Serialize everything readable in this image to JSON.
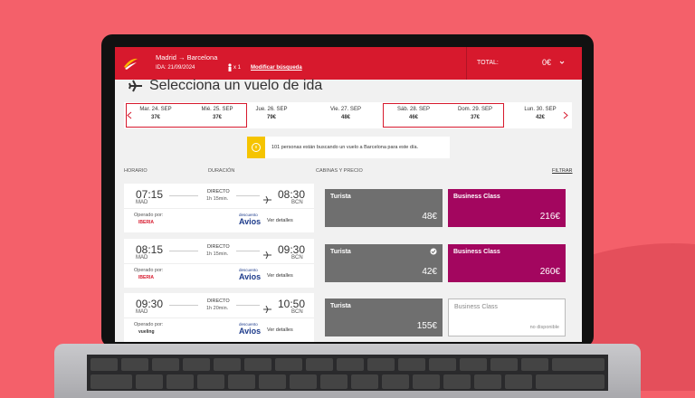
{
  "header": {
    "route": "Madrid → Barcelona",
    "date": "IDA: 21/09/2024",
    "passengers": "x 1",
    "modify": "Modificar búsqueda",
    "total_label": "TOTAL:",
    "total": "0€"
  },
  "title": "Selecciona un vuelo de ida",
  "dates": [
    {
      "day": "Mar. 24. SEP",
      "price": "37€"
    },
    {
      "day": "Mié. 25. SEP",
      "price": "37€"
    },
    {
      "day": "Jue. 26. SEP",
      "price": "79€"
    },
    {
      "day": "Vie. 27. SEP",
      "price": "48€"
    },
    {
      "day": "Sáb. 28. SEP",
      "price": "46€"
    },
    {
      "day": "Dom. 29. SEP",
      "price": "37€"
    },
    {
      "day": "Lun. 30. SEP",
      "price": "42€"
    }
  ],
  "notice": "101 personas están buscando un vuelo a Barcelona para este día.",
  "columns": {
    "schedule": "HORARIO",
    "duration": "DURACIÓN",
    "cabins": "CABINAS Y PRECIO",
    "filter": "FILTRAR"
  },
  "flights": [
    {
      "dep": "07:15",
      "dep_code": "MAD",
      "stops": "DIRECTO",
      "duration": "1h 15min.",
      "arr": "08:30",
      "arr_code": "BCN",
      "operated": "Operado por:",
      "airline": "IBERIA",
      "loyalty_top": "descuento",
      "loyalty": "Avios",
      "details": "Ver detalles",
      "cabins": [
        {
          "name": "Turista",
          "price": "48€"
        },
        {
          "name": "Business Class",
          "price": "216€"
        }
      ]
    },
    {
      "dep": "08:15",
      "dep_code": "MAD",
      "stops": "DIRECTO",
      "duration": "1h 15min.",
      "arr": "09:30",
      "arr_code": "BCN",
      "operated": "Operado por:",
      "airline": "IBERIA",
      "loyalty_top": "descuento",
      "loyalty": "Avios",
      "details": "Ver detalles",
      "cabins": [
        {
          "name": "Turista",
          "price": "42€"
        },
        {
          "name": "Business Class",
          "price": "260€"
        }
      ]
    },
    {
      "dep": "09:30",
      "dep_code": "MAD",
      "stops": "DIRECTO",
      "duration": "1h 20min.",
      "arr": "10:50",
      "arr_code": "BCN",
      "operated": "Operado por:",
      "airline": "vueling",
      "loyalty_top": "descuento",
      "loyalty": "Avios",
      "details": "Ver detalles",
      "cabins": [
        {
          "name": "Turista",
          "price": "155€"
        },
        {
          "name": "Business Class",
          "price": "no disponible"
        }
      ]
    }
  ]
}
